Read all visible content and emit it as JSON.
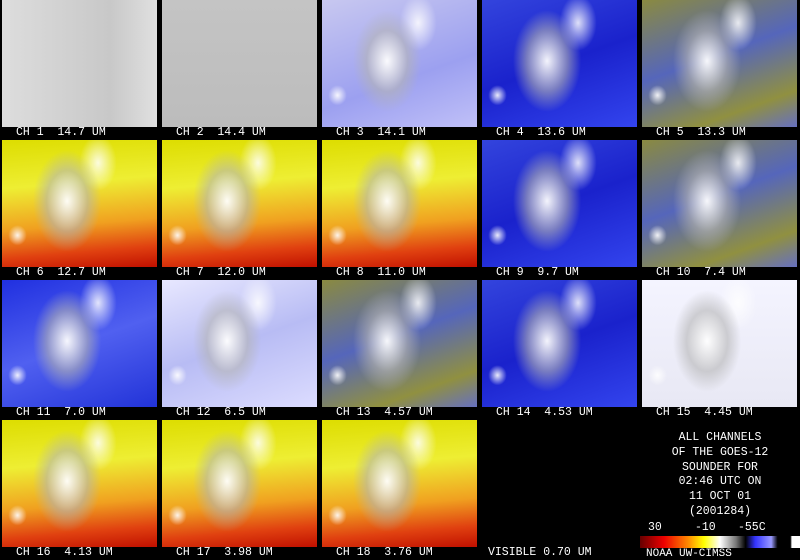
{
  "panels": [
    "CH 1  14.7 UM",
    "CH 2  14.4 UM",
    "CH 3  14.1 UM",
    "CH 4  13.6 UM",
    "CH 5  13.3 UM",
    "CH 6  12.7 UM",
    "CH 7  12.0 UM",
    "CH 8  11.0 UM",
    "CH 9  9.7 UM",
    "CH 10  7.4 UM",
    "CH 11  7.0 UM",
    "CH 12  6.5 UM",
    "CH 13  4.57 UM",
    "CH 14  4.53 UM",
    "CH 15  4.45 UM",
    "CH 16  4.13 UM",
    "CH 17  3.98 UM",
    "CH 18  3.76 UM"
  ],
  "visible_label": "VISIBLE 0.70 UM",
  "info_lines": [
    "ALL CHANNELS",
    "OF THE GOES-12",
    "SOUNDER FOR",
    "02:46 UTC ON",
    "11 OCT 01",
    "(2001284)"
  ],
  "colorbar": {
    "labels": [
      "30",
      "-10",
      "-55C"
    ]
  },
  "credit": "NOAA UW-CIMSS"
}
